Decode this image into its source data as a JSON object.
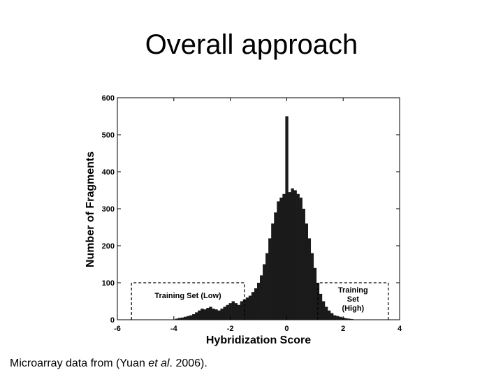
{
  "slide": {
    "title": "Overall approach",
    "caption_prefix": "Microarray data from (Yuan ",
    "caption_etal": "et al",
    "caption_suffix": ". 2006)."
  },
  "chart_data": {
    "type": "bar",
    "xlabel": "Hybridization Score",
    "ylabel": "Number of Fragments",
    "xlim": [
      -6,
      4
    ],
    "ylim": [
      0,
      600
    ],
    "xticks": [
      -6,
      -4,
      -2,
      0,
      2,
      4
    ],
    "yticks": [
      0,
      100,
      200,
      300,
      400,
      500,
      600
    ],
    "x": [
      -3.9,
      -3.8,
      -3.7,
      -3.6,
      -3.5,
      -3.4,
      -3.3,
      -3.2,
      -3.1,
      -3.0,
      -2.9,
      -2.8,
      -2.7,
      -2.6,
      -2.5,
      -2.4,
      -2.3,
      -2.2,
      -2.1,
      -2.0,
      -1.9,
      -1.8,
      -1.7,
      -1.6,
      -1.5,
      -1.4,
      -1.3,
      -1.2,
      -1.1,
      -1.0,
      -0.9,
      -0.8,
      -0.7,
      -0.6,
      -0.5,
      -0.4,
      -0.3,
      -0.2,
      -0.1,
      0.0,
      0.1,
      0.2,
      0.3,
      0.4,
      0.5,
      0.6,
      0.7,
      0.8,
      0.9,
      1.0,
      1.1,
      1.2,
      1.3,
      1.4,
      1.5,
      1.6,
      1.7,
      1.8,
      1.9,
      2.0,
      2.1,
      2.2,
      2.3,
      2.4
    ],
    "values": [
      3,
      5,
      6,
      8,
      10,
      12,
      15,
      20,
      25,
      30,
      28,
      32,
      35,
      30,
      28,
      25,
      30,
      35,
      40,
      45,
      50,
      45,
      40,
      50,
      55,
      60,
      65,
      75,
      85,
      100,
      120,
      150,
      180,
      220,
      260,
      290,
      320,
      330,
      340,
      550,
      345,
      355,
      350,
      340,
      330,
      300,
      260,
      220,
      180,
      140,
      100,
      70,
      50,
      35,
      25,
      18,
      12,
      10,
      8,
      6,
      4,
      3,
      2,
      1
    ],
    "annotations": [
      {
        "text": "Training Set (Low)",
        "x_range": [
          -5.5,
          -1.5
        ],
        "y_max": 100
      },
      {
        "text": "Training Set (High)",
        "x_range": [
          1.1,
          3.6
        ],
        "y_max": 100
      }
    ]
  }
}
